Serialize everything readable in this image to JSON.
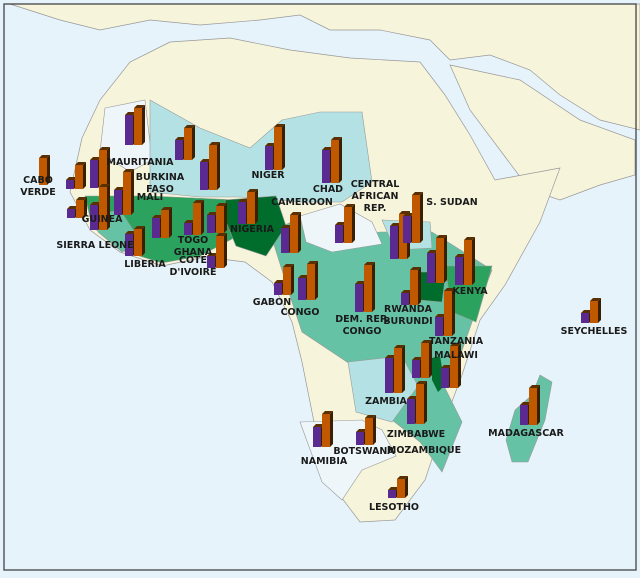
{
  "colors": {
    "ocean": "#e6f3fb",
    "land_other": "#f6f4da",
    "very_light": "#eef6fa",
    "light_cyan": "#b4e2e4",
    "teal": "#66c2a5",
    "green": "#2ca25f",
    "dark_green": "#006d2c",
    "bar_purple": "#5b2a91",
    "bar_orange": "#c05800"
  },
  "chart_data": {
    "type": "bar",
    "note_series_count": 2,
    "countries": [
      {
        "label": "CABO VERDE",
        "values": [
          0,
          27
        ]
      },
      {
        "label": "MAURITANIA",
        "values": [
          30,
          37
        ]
      },
      {
        "label": "",
        "values": [
          9,
          24
        ]
      },
      {
        "label": "",
        "values": [
          9,
          18
        ]
      },
      {
        "label": "",
        "values": [
          28,
          38
        ]
      },
      {
        "label": "GUINEA",
        "values": [
          25,
          43
        ]
      },
      {
        "label": "MALI",
        "values": [
          25,
          43
        ]
      },
      {
        "label": "BURKINA FASO",
        "values": [
          20,
          32
        ]
      },
      {
        "label": "",
        "values": [
          28,
          45
        ]
      },
      {
        "label": "NIGER",
        "values": [
          24,
          43
        ]
      },
      {
        "label": "CHAD",
        "values": [
          33,
          43
        ]
      },
      {
        "label": "LIBERIA",
        "values": [
          22,
          27
        ]
      },
      {
        "label": "SIERRA LEONE",
        "values": [
          20,
          28
        ]
      },
      {
        "label": "TOGO",
        "values": [
          12,
          32
        ]
      },
      {
        "label": "GHANA",
        "values": [
          18,
          27
        ]
      },
      {
        "label": "CÔTE D'IVOIRE",
        "values": [
          12,
          32
        ]
      },
      {
        "label": "NIGERIA",
        "values": [
          22,
          32
        ]
      },
      {
        "label": "CAMEROON",
        "values": [
          25,
          38
        ]
      },
      {
        "label": "CENTRAL AFRICAN REP.",
        "values": [
          18,
          36
        ]
      },
      {
        "label": "GABON",
        "values": [
          12,
          28
        ]
      },
      {
        "label": "CONGO",
        "values": [
          22,
          36
        ]
      },
      {
        "label": "",
        "values": [
          33,
          45
        ]
      },
      {
        "label": "S. SUDAN",
        "values": [
          27,
          48
        ]
      },
      {
        "label": "",
        "values": [
          30,
          45
        ]
      },
      {
        "label": "KENYA",
        "values": [
          28,
          45
        ]
      },
      {
        "label": "DEM. REP. CONGO",
        "values": [
          28,
          47
        ]
      },
      {
        "label": "RWANDA BURUNDI",
        "values": [
          12,
          35
        ]
      },
      {
        "label": "TANZANIA",
        "values": [
          19,
          45
        ]
      },
      {
        "label": "ZAMBIA",
        "values": [
          35,
          45
        ]
      },
      {
        "label": "MALAWI",
        "values": [
          18,
          35
        ]
      },
      {
        "label": "MOZAMBIQUE",
        "values": [
          20,
          42
        ]
      },
      {
        "label": "ZIMBABWE",
        "values": [
          25,
          40
        ]
      },
      {
        "label": "MADAGASCAR",
        "values": [
          20,
          37
        ]
      },
      {
        "label": "NAMIBIA",
        "values": [
          20,
          33
        ]
      },
      {
        "label": "BOTSWANA",
        "values": [
          13,
          27
        ]
      },
      {
        "label": "LESOTHO",
        "values": [
          8,
          19
        ]
      },
      {
        "label": "SEYCHELLES",
        "values": [
          10,
          22
        ]
      }
    ]
  },
  "labels": [
    [
      "CABO",
      "VERDE"
    ],
    [
      "MAURITANIA"
    ],
    [
      "BURKINA",
      "FASO"
    ],
    [
      "MALI"
    ],
    [
      "GUINEA"
    ],
    [
      "SIERRA LEONE"
    ],
    [
      "LIBERIA"
    ],
    [
      "TOGO",
      "GHANA"
    ],
    [
      "CÔTE",
      "D'IVOIRE"
    ],
    [
      "NIGER"
    ],
    [
      "NIGERIA"
    ],
    [
      "CHAD"
    ],
    [
      "CAMEROON"
    ],
    [
      "CENTRAL",
      "AFRICAN",
      "REP."
    ],
    [
      "S. SUDAN"
    ],
    [
      "GABON"
    ],
    [
      "CONGO"
    ],
    [
      "DEM. REP.",
      "CONGO"
    ],
    [
      "RWANDA",
      "BURUNDI"
    ],
    [
      "KENYA"
    ],
    [
      "TANZANIA"
    ],
    [
      "MALAWI"
    ],
    [
      "ZAMBIA"
    ],
    [
      "ZIMBABWE"
    ],
    [
      "MOZAMBIQUE"
    ],
    [
      "MADAGASCAR"
    ],
    [
      "NAMIBIA"
    ],
    [
      "BOTSWANA"
    ],
    [
      "LESOTHO"
    ],
    [
      "SEYCHELLES"
    ]
  ]
}
